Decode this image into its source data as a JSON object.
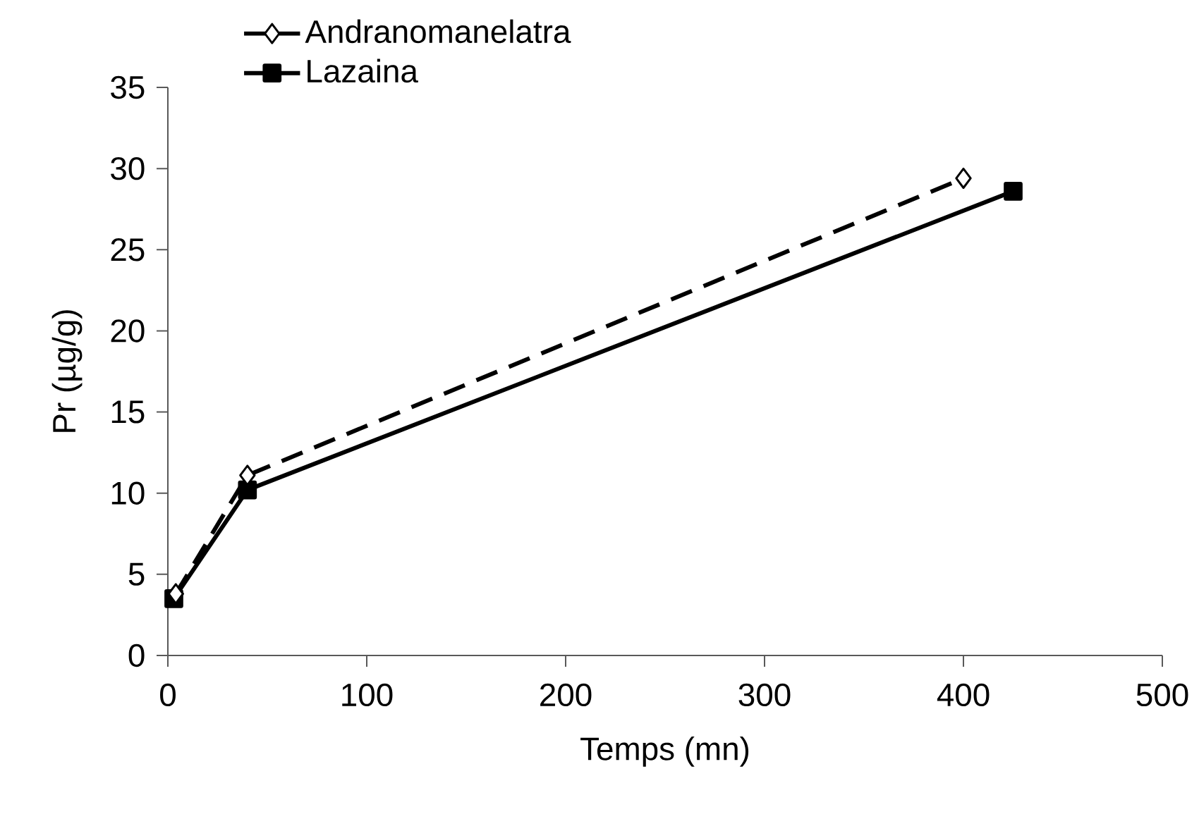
{
  "chart_data": {
    "type": "line",
    "xlabel": "Temps (mn)",
    "ylabel": "Pr (µg/g)",
    "xlim": [
      0,
      500
    ],
    "xticks": [
      0,
      100,
      200,
      300,
      400,
      500
    ],
    "ylim": [
      0,
      35
    ],
    "yticks": [
      0,
      5,
      10,
      15,
      20,
      25,
      30,
      35
    ],
    "legend": "top",
    "grid": false,
    "series": [
      {
        "name": "Andranomanelatra",
        "color": "#000000",
        "marker": "diamond",
        "line_style": "dashed",
        "x": [
          4,
          40,
          400
        ],
        "values": [
          3.8,
          11.1,
          29.4
        ]
      },
      {
        "name": "Lazaina",
        "color": "#000000",
        "marker": "square",
        "line_style": "solid",
        "x": [
          3,
          40,
          425
        ],
        "values": [
          3.5,
          10.2,
          28.6
        ]
      }
    ]
  }
}
